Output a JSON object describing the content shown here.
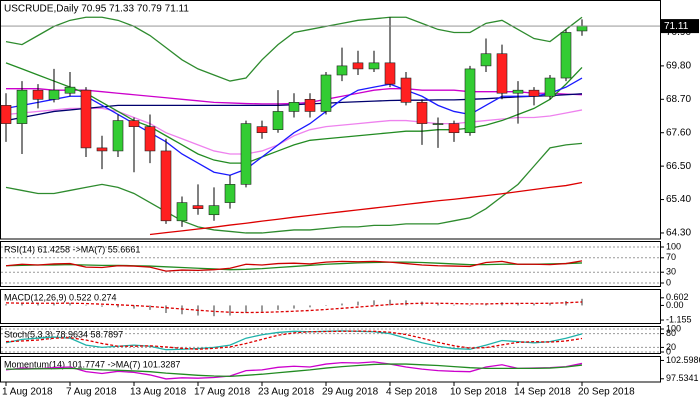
{
  "chart_data": [
    {
      "type": "candlestick",
      "title": "USCRUDE,Daily  70.95 71.33 70.79 71.11",
      "categories": [
        "1 Aug 2018",
        null,
        null,
        null,
        "7 Aug 2018",
        null,
        null,
        null,
        "13 Aug 2018",
        null,
        null,
        null,
        "17 Aug 2018",
        null,
        null,
        null,
        "23 Aug 2018",
        null,
        null,
        null,
        "29 Aug 2018",
        null,
        null,
        null,
        "4 Sep 2018",
        null,
        null,
        null,
        "10 Sep 2018",
        null,
        null,
        null,
        "14 Sep 2018",
        null,
        null,
        null,
        "20 Sep 2018"
      ],
      "open": [
        68.5,
        67.9,
        69.0,
        68.7,
        68.9,
        69.0,
        67.1,
        67.0,
        68.0,
        67.8,
        67.0,
        64.7,
        65.2,
        64.9,
        65.3,
        65.9,
        67.8,
        67.7,
        68.3,
        68.7,
        68.3,
        69.5,
        69.9,
        69.7,
        69.9,
        69.4,
        68.6,
        67.9,
        67.9,
        67.6,
        69.8,
        70.2,
        68.9,
        69.0,
        68.8,
        69.4,
        70.95
      ],
      "high": [
        68.9,
        69.3,
        69.2,
        69.7,
        69.6,
        69.1,
        67.5,
        68.2,
        68.1,
        68.2,
        67.4,
        65.5,
        65.9,
        65.8,
        66.2,
        68.0,
        68.0,
        69.0,
        68.9,
        68.9,
        69.6,
        70.4,
        70.3,
        70.3,
        71.4,
        69.6,
        68.7,
        68.1,
        68.0,
        69.8,
        70.7,
        70.5,
        69.3,
        69.1,
        69.5,
        71.0,
        71.33
      ],
      "low": [
        67.3,
        66.9,
        68.4,
        68.6,
        68.8,
        66.8,
        66.4,
        66.8,
        66.3,
        66.6,
        64.6,
        64.5,
        64.9,
        64.7,
        65.1,
        65.8,
        67.4,
        67.6,
        68.1,
        68.1,
        68.2,
        69.3,
        69.5,
        69.6,
        69.1,
        68.5,
        67.2,
        67.1,
        67.3,
        67.5,
        69.6,
        68.7,
        67.9,
        68.5,
        68.7,
        69.3,
        70.79
      ],
      "close": [
        67.9,
        69.0,
        68.7,
        69.0,
        69.1,
        67.1,
        67.0,
        68.0,
        67.8,
        67.0,
        64.7,
        65.3,
        65.1,
        65.2,
        65.9,
        67.9,
        67.6,
        68.3,
        68.6,
        68.3,
        69.5,
        69.8,
        69.7,
        69.9,
        69.2,
        68.6,
        67.9,
        67.9,
        67.6,
        69.7,
        70.2,
        68.9,
        69.0,
        68.8,
        69.4,
        70.9,
        71.11
      ],
      "up_color": "#33cc33",
      "down_color": "#ff2020",
      "last": 71.11,
      "ylim": [
        64.2,
        71.87
      ],
      "yticks": [
        {
          "value": 64.3,
          "label": "64.30"
        },
        {
          "value": 65.4,
          "label": "65.40"
        },
        {
          "value": 66.5,
          "label": "66.50"
        },
        {
          "value": 67.6,
          "label": "67.60"
        },
        {
          "value": 68.7,
          "label": "68.70"
        },
        {
          "value": 69.8,
          "label": "69.80"
        },
        {
          "value": 70.9,
          "label": "70.90"
        }
      ],
      "series": [
        {
          "color": "#2e8b2e",
          "values": [
            70.6,
            70.5,
            70.8,
            71.1,
            71.3,
            71.4,
            71.4,
            71.3,
            71.1,
            70.8,
            70.4,
            70.0,
            69.7,
            69.5,
            69.3,
            69.4,
            70.0,
            70.5,
            70.9,
            71.0,
            71.1,
            71.2,
            71.3,
            71.35,
            71.4,
            71.4,
            71.2,
            71.0,
            70.9,
            70.9,
            71.2,
            71.3,
            71.0,
            70.7,
            70.6,
            71.0,
            71.4
          ]
        },
        {
          "color": "#2e8b2e",
          "values": [
            65.8,
            65.7,
            65.6,
            65.6,
            65.7,
            65.8,
            65.9,
            65.8,
            65.6,
            65.3,
            65.0,
            64.7,
            64.5,
            64.4,
            64.35,
            64.3,
            64.3,
            64.35,
            64.4,
            64.4,
            64.45,
            64.5,
            64.5,
            64.55,
            64.55,
            64.6,
            64.6,
            64.6,
            64.7,
            64.8,
            65.1,
            65.5,
            65.9,
            66.5,
            67.1,
            67.2,
            67.25
          ]
        },
        {
          "color": "#ee82ee",
          "values": [
            68.2,
            68.25,
            68.3,
            68.35,
            68.4,
            68.4,
            68.4,
            68.3,
            68.1,
            67.9,
            67.6,
            67.4,
            67.2,
            67.0,
            66.9,
            66.9,
            67.0,
            67.2,
            67.5,
            67.7,
            67.8,
            67.85,
            67.9,
            67.95,
            68.0,
            68.0,
            67.95,
            67.9,
            67.9,
            67.95,
            68.0,
            68.05,
            68.1,
            68.1,
            68.15,
            68.25,
            68.35
          ]
        },
        {
          "color": "#dd0000",
          "values": [
            null,
            null,
            null,
            null,
            null,
            null,
            null,
            null,
            null,
            64.25,
            64.31,
            64.37,
            64.43,
            64.49,
            64.56,
            64.62,
            64.69,
            64.75,
            64.82,
            64.88,
            64.94,
            65.0,
            65.06,
            65.12,
            65.18,
            65.24,
            65.3,
            65.36,
            65.41,
            65.47,
            65.53,
            65.59,
            65.66,
            65.73,
            65.8,
            65.86,
            65.96
          ]
        },
        {
          "color": "#cc00cc",
          "values": [
            69.05,
            69.05,
            69.05,
            69.0,
            69.0,
            69.0,
            68.95,
            68.9,
            68.85,
            68.8,
            68.75,
            68.7,
            68.65,
            68.6,
            68.58,
            68.56,
            68.55,
            68.55,
            68.56,
            68.6,
            68.7,
            68.8,
            68.9,
            69.0,
            69.05,
            69.05,
            69.0,
            69.0,
            69.0,
            68.95,
            68.95,
            68.95,
            68.95,
            68.9,
            68.9,
            68.87,
            68.85
          ]
        },
        {
          "color": "#00006e",
          "values": [
            68.0,
            68.1,
            68.2,
            68.3,
            68.35,
            68.4,
            68.45,
            68.5,
            68.5,
            68.5,
            68.5,
            68.5,
            68.5,
            68.5,
            68.5,
            68.5,
            68.5,
            68.5,
            68.52,
            68.55,
            68.57,
            68.6,
            68.62,
            68.64,
            68.66,
            68.67,
            68.67,
            68.68,
            68.68,
            68.7,
            68.72,
            68.75,
            68.78,
            68.8,
            68.82,
            68.85,
            68.88
          ]
        },
        {
          "color": "#228b22",
          "values": [
            69.9,
            69.7,
            69.5,
            69.3,
            69.1,
            68.9,
            68.6,
            68.3,
            68.0,
            67.8,
            67.5,
            67.2,
            66.9,
            66.7,
            66.6,
            66.6,
            66.8,
            67.0,
            67.2,
            67.35,
            67.4,
            67.45,
            67.5,
            67.55,
            67.6,
            67.65,
            67.65,
            67.7,
            67.7,
            67.75,
            67.85,
            68.0,
            68.2,
            68.4,
            68.7,
            69.2,
            69.75
          ]
        },
        {
          "color": "#1a1aff",
          "values": [
            68.4,
            68.5,
            68.6,
            68.7,
            68.8,
            68.8,
            68.5,
            68.2,
            67.9,
            67.6,
            67.3,
            66.9,
            66.6,
            66.3,
            66.2,
            66.4,
            66.8,
            67.2,
            67.6,
            67.9,
            68.3,
            68.7,
            69.0,
            69.1,
            69.2,
            69.0,
            68.8,
            68.5,
            68.3,
            68.2,
            68.5,
            68.8,
            68.8,
            68.8,
            68.9,
            69.1,
            69.4
          ]
        }
      ]
    },
    {
      "type": "line",
      "title": "RSI(14) 61.4258 ->MA(7) 55.6661",
      "ylim": [
        0,
        100
      ],
      "yticks": [
        0,
        30,
        70,
        100
      ],
      "grid": true,
      "series": [
        {
          "color": "#228b22",
          "values": [
            48,
            49,
            50,
            50,
            51,
            50,
            49,
            49,
            48,
            47,
            45,
            43,
            41,
            39,
            37,
            38,
            40,
            43,
            46,
            49,
            52,
            54,
            56,
            57,
            58,
            58,
            57,
            55,
            53,
            51,
            51,
            52,
            52,
            52,
            53,
            54,
            55.6661
          ]
        },
        {
          "color": "#cc0000",
          "values": [
            48,
            52,
            50,
            53,
            54,
            44,
            43,
            48,
            47,
            44,
            33,
            36,
            35,
            37,
            41,
            52,
            50,
            54,
            55,
            53,
            58,
            60,
            59,
            60,
            58,
            54,
            50,
            48,
            47,
            46,
            57,
            60,
            52,
            52,
            51,
            54,
            61.4258
          ]
        }
      ]
    },
    {
      "type": "macd",
      "title": "MACD(12,26,9) 0.522 0.274",
      "ylim": [
        -1.31,
        1.14
      ],
      "yticks": [
        {
          "value": -1.155,
          "label": "-1.155"
        },
        {
          "value": 0,
          "label": "0.00"
        },
        {
          "value": 0.602,
          "label": "0.602"
        }
      ],
      "grid": false,
      "series": [
        {
          "color": "#9a9a9a",
          "style": "histogram",
          "values": [
            0.1,
            0.15,
            0.15,
            0.2,
            0.2,
            0.05,
            -0.1,
            -0.15,
            -0.25,
            -0.35,
            -0.6,
            -0.7,
            -0.8,
            -0.85,
            -0.8,
            -0.6,
            -0.5,
            -0.35,
            -0.25,
            -0.15,
            0,
            0.15,
            0.3,
            0.4,
            0.45,
            0.4,
            0.3,
            0.15,
            0.05,
            0,
            0.15,
            0.25,
            0.2,
            0.15,
            0.2,
            0.35,
            0.522
          ]
        },
        {
          "color": "#dd0000",
          "dash": true,
          "values": [
            0.2,
            0.18,
            0.17,
            0.17,
            0.18,
            0.15,
            0.1,
            0.05,
            -0.01,
            -0.08,
            -0.18,
            -0.28,
            -0.38,
            -0.47,
            -0.54,
            -0.56,
            -0.55,
            -0.51,
            -0.46,
            -0.4,
            -0.32,
            -0.23,
            -0.13,
            -0.03,
            0.07,
            0.14,
            0.17,
            0.17,
            0.15,
            0.12,
            0.12,
            0.15,
            0.16,
            0.16,
            0.17,
            0.21,
            0.274
          ]
        }
      ]
    },
    {
      "type": "line",
      "title": "Stoch(5,3,3) 78.9634 58.7897",
      "ylim": [
        0,
        100
      ],
      "yticks": [
        0,
        20,
        80,
        100
      ],
      "grid": true,
      "series": [
        {
          "color": "#20b2aa",
          "values": [
            40,
            55,
            60,
            65,
            60,
            30,
            20,
            25,
            30,
            25,
            10,
            12,
            15,
            20,
            30,
            60,
            75,
            85,
            90,
            88,
            90,
            92,
            90,
            88,
            80,
            60,
            40,
            25,
            15,
            12,
            30,
            50,
            45,
            40,
            45,
            60,
            78.9634
          ]
        },
        {
          "color": "#dd0000",
          "dash": true,
          "values": [
            45,
            48,
            52,
            60,
            62,
            52,
            37,
            25,
            25,
            27,
            22,
            16,
            12,
            16,
            22,
            37,
            55,
            73,
            83,
            88,
            89,
            90,
            91,
            90,
            86,
            76,
            60,
            42,
            27,
            17,
            19,
            31,
            42,
            45,
            43,
            48,
            58.7897
          ]
        }
      ]
    },
    {
      "type": "line",
      "title": "Momentum(14) 101.7747 ->MA(7) 101.3287",
      "ylim": [
        97.2,
        103.0
      ],
      "yticks": [
        97.5341,
        102.5986
      ],
      "grid": false,
      "series": [
        {
          "color": "#cc00cc",
          "values": [
            100,
            100.5,
            100.3,
            100.6,
            100.8,
            99.5,
            99.0,
            99.6,
            99.3,
            98.6,
            97.5,
            97.8,
            97.7,
            97.9,
            98.3,
            99.8,
            100.0,
            100.7,
            101.0,
            100.8,
            101.6,
            102.0,
            101.9,
            102.2,
            101.6,
            100.8,
            100.2,
            99.8,
            99.6,
            99.5,
            100.8,
            101.4,
            100.4,
            100.5,
            100.6,
            100.9,
            101.7747
          ]
        },
        {
          "color": "#228b22",
          "values": [
            100.2,
            100.2,
            100.3,
            100.3,
            100.4,
            100.2,
            100.0,
            99.9,
            99.7,
            99.5,
            99.1,
            98.8,
            98.5,
            98.3,
            98.2,
            98.5,
            98.8,
            99.2,
            99.6,
            100.0,
            100.5,
            100.9,
            101.2,
            101.5,
            101.6,
            101.6,
            101.4,
            101.2,
            100.9,
            100.6,
            100.4,
            100.4,
            100.4,
            100.4,
            100.5,
            100.8,
            101.3287
          ]
        }
      ]
    }
  ]
}
